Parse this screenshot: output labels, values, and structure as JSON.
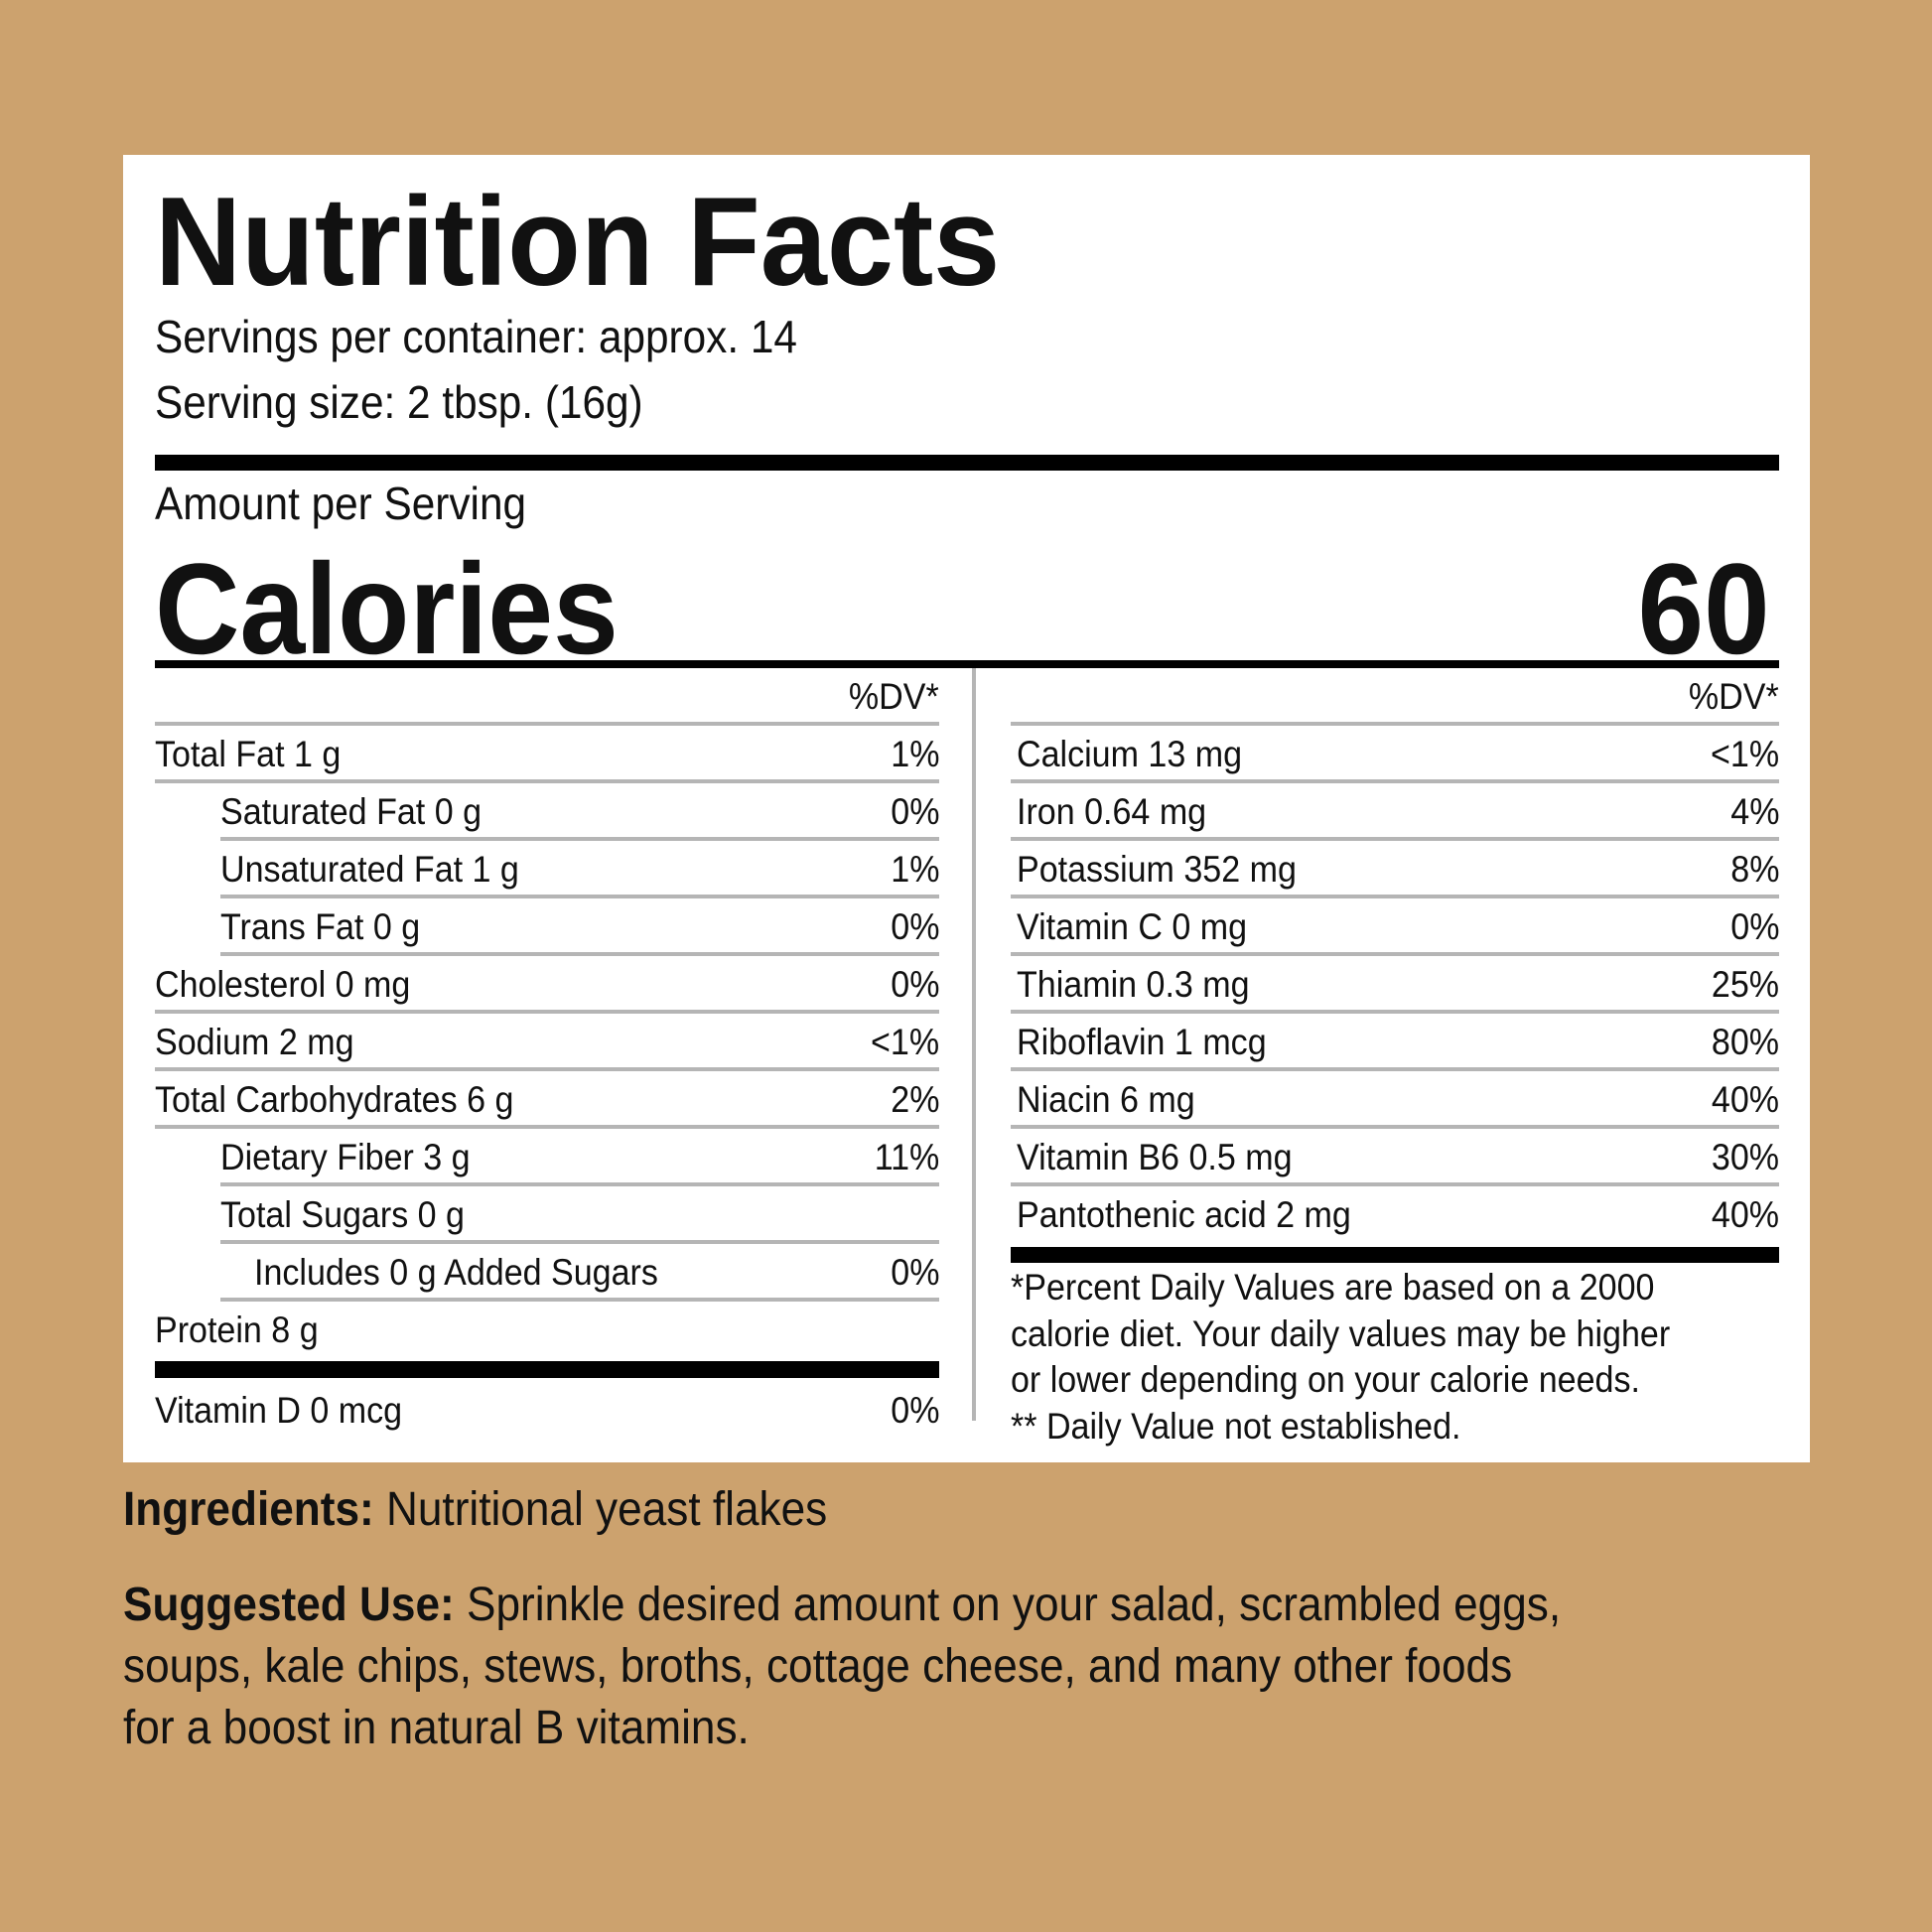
{
  "colors": {
    "background": "#cca26e",
    "panel": "#ffffff",
    "rule": "#b5b5b5"
  },
  "label": {
    "title": "Nutrition Facts",
    "servings_per_container": "Servings per container: approx. 14",
    "serving_size": "Serving size: 2 tbsp. (16g)",
    "amount_per_serving": "Amount per Serving",
    "calories_label": "Calories",
    "calories_value": "60",
    "dv_header": "%DV*",
    "left_rows": [
      {
        "label": "Total Fat 1 g",
        "dv": "1%",
        "indent": 0
      },
      {
        "label": "Saturated Fat 0 g",
        "dv": "0%",
        "indent": 1
      },
      {
        "label": "Unsaturated Fat 1 g",
        "dv": "1%",
        "indent": 1
      },
      {
        "label": "Trans Fat 0 g",
        "dv": "0%",
        "indent": 1
      },
      {
        "label": "Cholesterol 0 mg",
        "dv": "0%",
        "indent": 0
      },
      {
        "label": "Sodium 2 mg",
        "dv": "<1%",
        "indent": 0
      },
      {
        "label": "Total Carbohydrates 6 g",
        "dv": "2%",
        "indent": 0
      },
      {
        "label": "Dietary Fiber 3 g",
        "dv": "11%",
        "indent": 1
      },
      {
        "label": "Total Sugars 0 g",
        "dv": "",
        "indent": 1
      },
      {
        "label": "Includes 0 g Added Sugars",
        "dv": "0%",
        "indent": 2
      },
      {
        "label": "Protein 8 g",
        "dv": "",
        "indent": 0
      }
    ],
    "vitamin_d": {
      "label": "Vitamin D 0 mcg",
      "dv": "0%"
    },
    "right_rows": [
      {
        "label": "Calcium 13 mg",
        "dv": "<1%"
      },
      {
        "label": "Iron 0.64 mg",
        "dv": "4%"
      },
      {
        "label": "Potassium 352 mg",
        "dv": "8%"
      },
      {
        "label": "Vitamin C 0 mg",
        "dv": "0%"
      },
      {
        "label": "Thiamin 0.3 mg",
        "dv": "25%"
      },
      {
        "label": "Riboflavin 1 mcg",
        "dv": "80%"
      },
      {
        "label": "Niacin 6 mg",
        "dv": "40%"
      },
      {
        "label": "Vitamin B6 0.5 mg",
        "dv": "30%"
      },
      {
        "label": "Pantothenic acid 2 mg",
        "dv": "40%"
      }
    ],
    "footnotes": [
      "*Percent Daily Values are based on a 2000",
      "calorie diet. Your daily values may be higher",
      "or lower depending on your calorie needs.",
      "** Daily Value not established."
    ]
  },
  "ingredients": {
    "heading": "Ingredients:",
    "text": " Nutritional yeast flakes"
  },
  "suggested_use": {
    "heading": "Suggested Use:",
    "lines": [
      " Sprinkle desired amount on your salad, scrambled eggs,",
      "soups, kale chips, stews, broths, cottage cheese, and many other foods",
      "for a boost in natural B vitamins."
    ]
  }
}
